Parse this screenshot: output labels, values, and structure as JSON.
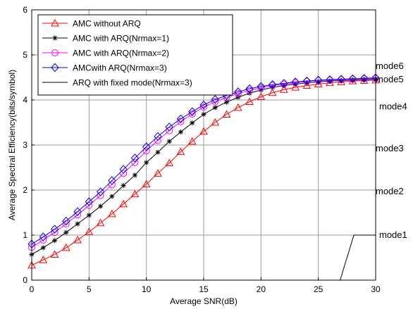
{
  "chart_data": {
    "type": "line",
    "title": "",
    "xlabel": "Average SNR(dB)",
    "ylabel": "Average Spectral Efficiency(bits/symbol)",
    "xlim": [
      0,
      30
    ],
    "ylim": [
      0,
      6
    ],
    "xticks": [
      0,
      5,
      10,
      15,
      20,
      25,
      30
    ],
    "yticks": [
      0,
      1,
      2,
      3,
      4,
      5,
      6
    ],
    "grid": true,
    "legend_position": "top-left",
    "series": [
      {
        "name": "AMC without ARQ",
        "color": "#ff0000",
        "marker": "triangle",
        "x": [
          0,
          1,
          2,
          3,
          4,
          5,
          6,
          7,
          8,
          9,
          10,
          11,
          12,
          13,
          14,
          15,
          16,
          17,
          18,
          19,
          20,
          21,
          22,
          23,
          24,
          25,
          26,
          27,
          28,
          29,
          30
        ],
        "y": [
          0.33,
          0.45,
          0.57,
          0.72,
          0.89,
          1.07,
          1.27,
          1.47,
          1.69,
          1.91,
          2.13,
          2.37,
          2.6,
          2.85,
          3.08,
          3.3,
          3.5,
          3.68,
          3.83,
          3.96,
          4.07,
          4.16,
          4.23,
          4.28,
          4.32,
          4.35,
          4.38,
          4.4,
          4.42,
          4.43,
          4.44
        ]
      },
      {
        "name": "AMC with ARQ(Nrmax=1)",
        "color": "#000000",
        "marker": "star",
        "x": [
          0,
          1,
          2,
          3,
          4,
          5,
          6,
          7,
          8,
          9,
          10,
          11,
          12,
          13,
          14,
          15,
          16,
          17,
          18,
          19,
          20,
          21,
          22,
          23,
          24,
          25,
          26,
          27,
          28,
          29,
          30
        ],
        "y": [
          0.57,
          0.72,
          0.88,
          1.06,
          1.25,
          1.44,
          1.64,
          1.86,
          2.1,
          2.33,
          2.61,
          2.84,
          3.08,
          3.29,
          3.49,
          3.68,
          3.83,
          3.95,
          4.06,
          4.15,
          4.22,
          4.28,
          4.32,
          4.35,
          4.38,
          4.4,
          4.42,
          4.43,
          4.44,
          4.45,
          4.46
        ]
      },
      {
        "name": "AMC with ARQ(Nrmax=2)",
        "color": "#ff00ff",
        "marker": "circle",
        "x": [
          0,
          1,
          2,
          3,
          4,
          5,
          6,
          7,
          8,
          9,
          10,
          11,
          12,
          13,
          14,
          15,
          16,
          17,
          18,
          19,
          20,
          21,
          22,
          23,
          24,
          25,
          26,
          27,
          28,
          29,
          30
        ],
        "y": [
          0.73,
          0.89,
          1.06,
          1.25,
          1.45,
          1.66,
          1.88,
          2.12,
          2.37,
          2.61,
          2.87,
          3.1,
          3.32,
          3.52,
          3.69,
          3.84,
          3.96,
          4.06,
          4.14,
          4.21,
          4.27,
          4.32,
          4.35,
          4.38,
          4.41,
          4.43,
          4.44,
          4.45,
          4.46,
          4.47,
          4.48
        ]
      },
      {
        "name": "AMCwith ARQ(Nrmax=3)",
        "color": "#0000ff",
        "marker": "diamond",
        "x": [
          0,
          1,
          2,
          3,
          4,
          5,
          6,
          7,
          8,
          9,
          10,
          11,
          12,
          13,
          14,
          15,
          16,
          17,
          18,
          19,
          20,
          21,
          22,
          23,
          24,
          25,
          26,
          27,
          28,
          29,
          30
        ],
        "y": [
          0.8,
          0.96,
          1.13,
          1.31,
          1.52,
          1.74,
          1.96,
          2.21,
          2.46,
          2.71,
          2.96,
          3.19,
          3.4,
          3.58,
          3.74,
          3.89,
          4.01,
          4.1,
          4.18,
          4.25,
          4.3,
          4.34,
          4.37,
          4.4,
          4.42,
          4.44,
          4.45,
          4.46,
          4.47,
          4.48,
          4.49
        ]
      },
      {
        "name": "ARQ with fixed mode(Nrmax=3)",
        "color": "#000000",
        "marker": "none",
        "x": [
          26.9,
          28.1,
          30
        ],
        "y": [
          0,
          1,
          1
        ]
      }
    ],
    "annotations": [
      {
        "text": "mode6",
        "y": 4.75
      },
      {
        "text": "mode5",
        "y": 4.45
      },
      {
        "text": "mode4",
        "y": 3.85
      },
      {
        "text": "mode3",
        "y": 2.92
      },
      {
        "text": "mode2",
        "y": 1.97
      },
      {
        "text": "mode1",
        "y": 1.0
      }
    ]
  }
}
